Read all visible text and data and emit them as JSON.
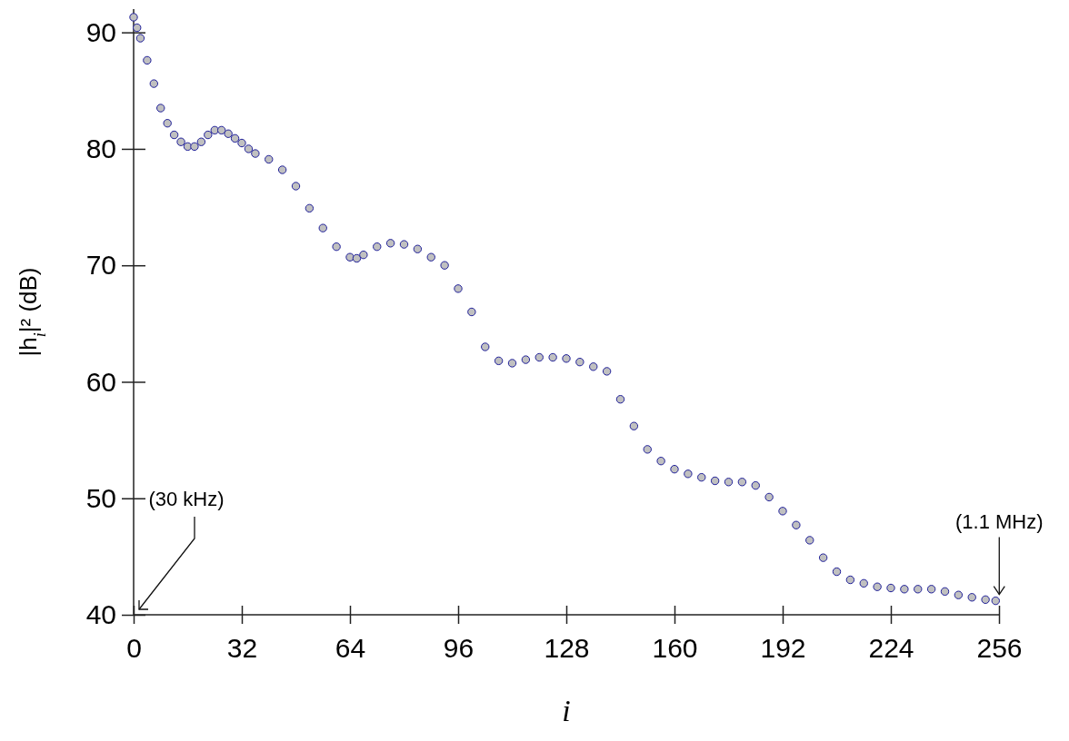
{
  "chart_data": {
    "type": "scatter",
    "xlabel": "i",
    "ylabel": "|h$_{i}$|² (dB)",
    "xlim": [
      0,
      256
    ],
    "ylim": [
      40,
      92
    ],
    "xticks": [
      0,
      32,
      64,
      96,
      128,
      160,
      192,
      224,
      256
    ],
    "yticks": [
      40,
      50,
      60,
      70,
      80,
      90
    ],
    "grid": false,
    "marker": "circle",
    "annotations": [
      "(30 kHz)",
      {
        "text": "(1.1 MHz)",
        "x": 255,
        "y": 41.2
      }
    ],
    "series": [
      {
        "color": "#c0c0c0",
        "x": [
          0,
          1,
          2,
          4,
          6,
          8,
          10,
          12,
          14,
          16,
          18,
          20,
          22,
          24,
          26,
          28,
          30,
          32,
          34,
          36,
          40,
          44,
          48,
          52,
          56,
          60,
          64,
          66,
          68,
          72,
          76,
          80,
          84,
          88,
          92,
          96,
          100,
          104,
          108,
          112,
          116,
          120,
          124,
          128,
          132,
          136,
          140,
          144,
          148,
          152,
          156,
          160,
          164,
          168,
          172,
          176,
          180,
          184,
          188,
          192,
          196,
          200,
          204,
          208,
          212,
          216,
          220,
          224,
          228,
          232,
          236,
          240,
          244,
          248,
          252,
          255
        ],
        "values": [
          91.3,
          90.4,
          89.5,
          87.6,
          85.6,
          83.5,
          82.2,
          81.2,
          80.6,
          80.2,
          80.2,
          80.6,
          81.2,
          81.6,
          81.6,
          81.3,
          80.9,
          80.5,
          80.0,
          79.6,
          79.1,
          78.2,
          76.8,
          74.9,
          73.2,
          71.6,
          70.7,
          70.6,
          70.9,
          71.6,
          71.9,
          71.8,
          71.4,
          70.7,
          70.0,
          68.0,
          66.0,
          63.0,
          61.8,
          61.6,
          61.9,
          62.1,
          62.1,
          62.0,
          61.7,
          61.3,
          60.9,
          58.5,
          56.2,
          54.2,
          53.2,
          52.5,
          52.1,
          51.8,
          51.5,
          51.4,
          51.4,
          51.1,
          50.1,
          48.9,
          47.7,
          46.4,
          44.9,
          43.7,
          43.0,
          42.7,
          42.4,
          42.3,
          42.2,
          42.2,
          42.2,
          42.0,
          41.7,
          41.5,
          41.3,
          41.2
        ]
      }
    ]
  }
}
